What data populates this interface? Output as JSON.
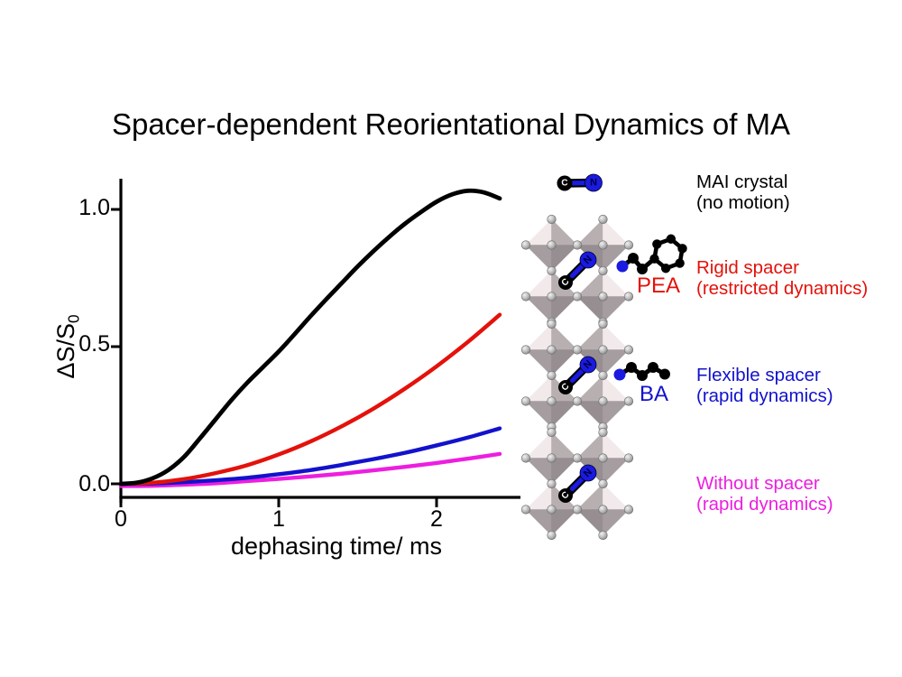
{
  "title": "Spacer-dependent Reorientational Dynamics of MA",
  "colors": {
    "black": "#000000",
    "red": "#e3120b",
    "blue": "#1212cd",
    "magenta": "#ed1ee0",
    "octahedron_nw": "#f2eaea",
    "octahedron_ne": "#b8afb1",
    "octahedron_sw": "#a59da0",
    "octahedron_se": "#968e91",
    "nitrogen_blue": "#1a1ae0"
  },
  "chart_data": {
    "type": "line",
    "title": "Spacer-dependent Reorientational Dynamics of MA",
    "xlabel": "dephasing time/ ms",
    "ylabel": "ΔS/S",
    "ylabel_sub": "0",
    "xlim": [
      0,
      2.53
    ],
    "ylim": [
      -0.07,
      1.11
    ],
    "grid": false,
    "legend_position": "right side, outside plot",
    "xtick_labels": [
      "0",
      "1",
      "2"
    ],
    "xtick_values": [
      0,
      1,
      2
    ],
    "ytick_labels_top_to_bottom": [
      "1.0",
      "0.5",
      "0.0"
    ],
    "ytick_values_top_to_bottom": [
      1.0,
      0.5,
      0.0
    ],
    "series": [
      {
        "name": "MAI crystal (no motion)",
        "color_key": "black",
        "x": [
          0,
          0.1,
          0.2,
          0.3,
          0.4,
          0.5,
          0.6,
          0.7,
          0.8,
          0.9,
          1.0,
          1.1,
          1.2,
          1.3,
          1.4,
          1.5,
          1.6,
          1.7,
          1.8,
          1.9,
          2.0,
          2.1,
          2.2,
          2.3,
          2.4
        ],
        "y": [
          0,
          0.004,
          0.02,
          0.05,
          0.098,
          0.165,
          0.235,
          0.305,
          0.368,
          0.425,
          0.482,
          0.545,
          0.61,
          0.672,
          0.732,
          0.792,
          0.848,
          0.9,
          0.948,
          0.99,
          1.028,
          1.055,
          1.068,
          1.062,
          1.04
        ]
      },
      {
        "name": "Rigid spacer PEA (restricted dynamics)",
        "color_key": "red",
        "x": [
          0,
          0.2,
          0.4,
          0.6,
          0.8,
          1.0,
          1.2,
          1.4,
          1.6,
          1.8,
          2.0,
          2.2,
          2.4
        ],
        "y": [
          0,
          0.004,
          0.017,
          0.039,
          0.068,
          0.107,
          0.154,
          0.21,
          0.274,
          0.347,
          0.428,
          0.518,
          0.616
        ]
      },
      {
        "name": "Flexible spacer BA (rapid dynamics)",
        "color_key": "blue",
        "x": [
          0,
          0.2,
          0.4,
          0.6,
          0.8,
          1.0,
          1.2,
          1.4,
          1.6,
          1.8,
          2.0,
          2.2,
          2.4
        ],
        "y": [
          0,
          0.001,
          0.006,
          0.013,
          0.022,
          0.035,
          0.05,
          0.069,
          0.09,
          0.113,
          0.14,
          0.169,
          0.202
        ]
      },
      {
        "name": "Without spacer (rapid dynamics)",
        "color_key": "magenta",
        "x": [
          0,
          0.2,
          0.4,
          0.6,
          0.8,
          1.0,
          1.2,
          1.4,
          1.6,
          1.8,
          2.0,
          2.2,
          2.4
        ],
        "y": [
          -0.008,
          -0.007,
          -0.003,
          0.002,
          0.01,
          0.018,
          0.027,
          0.037,
          0.049,
          0.062,
          0.076,
          0.092,
          0.109
        ]
      }
    ]
  },
  "legend": [
    {
      "line1": "MAI crystal",
      "line2": "(no motion)",
      "color_key": "black"
    },
    {
      "line1": "Rigid spacer",
      "line2": "(restricted dynamics)",
      "color_key": "red"
    },
    {
      "line1": "Flexible spacer",
      "line2": "(rapid dynamics)",
      "color_key": "blue"
    },
    {
      "line1": "Without spacer",
      "line2": "(rapid dynamics)",
      "color_key": "magenta"
    }
  ],
  "molecule_labels": {
    "pea": "PEA",
    "ba": "BA"
  },
  "atom_labels": {
    "carbon": "C",
    "nitrogen": "N"
  }
}
